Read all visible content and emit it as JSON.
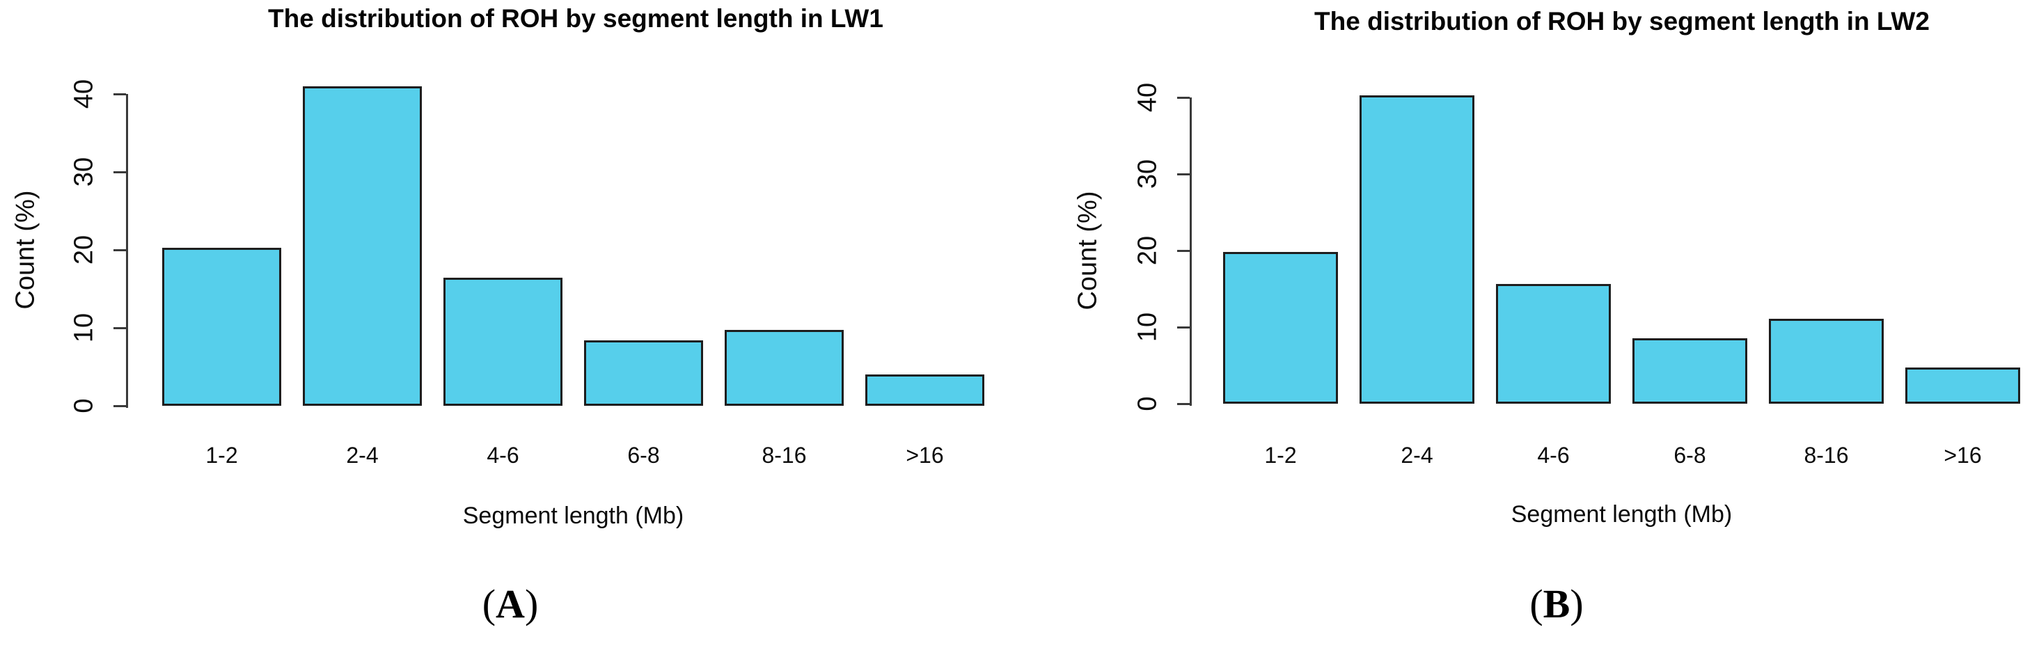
{
  "figure": {
    "background": "#ffffff",
    "panels": [
      {
        "id": "A",
        "caption_open": "(",
        "caption_letter": "A",
        "caption_close": ")"
      },
      {
        "id": "B",
        "caption_open": "(",
        "caption_letter": "B",
        "caption_close": ")"
      }
    ]
  },
  "chart_data": [
    {
      "type": "bar",
      "title": "The distribution of ROH by segment length in LW1",
      "categories": [
        "1-2",
        "2-4",
        "4-6",
        "6-8",
        "8-16",
        ">16"
      ],
      "values": [
        20.3,
        41.0,
        16.4,
        8.4,
        9.7,
        4.0
      ],
      "xlabel": "Segment length (Mb)",
      "ylabel": "Count (%)",
      "ylim": [
        0,
        40
      ],
      "yticks": [
        0,
        10,
        20,
        30,
        40
      ],
      "grid": false,
      "legend": "none",
      "bar_fill": "#56CFEB",
      "bar_border": "#1e1e1e",
      "axis_color": "#3a3a3a"
    },
    {
      "type": "bar",
      "title": "The distribution of ROH by segment length in LW2",
      "categories": [
        "1-2",
        "2-4",
        "4-6",
        "6-8",
        "8-16",
        ">16"
      ],
      "values": [
        19.8,
        40.3,
        15.6,
        8.5,
        11.1,
        4.7
      ],
      "xlabel": "Segment length (Mb)",
      "ylabel": "Count (%)",
      "ylim": [
        0,
        40
      ],
      "yticks": [
        0,
        10,
        20,
        30,
        40
      ],
      "grid": false,
      "legend": "none",
      "bar_fill": "#56CFEB",
      "bar_border": "#1e1e1e",
      "axis_color": "#3a3a3a"
    }
  ]
}
